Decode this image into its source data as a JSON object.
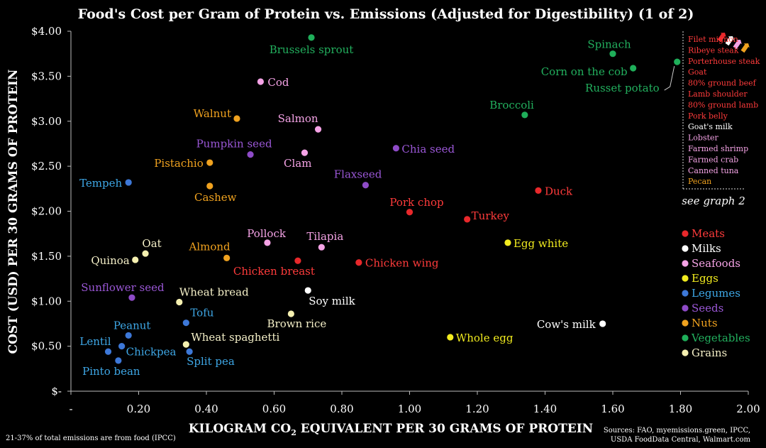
{
  "chart_data": {
    "type": "scatter",
    "title": "Food's Cost per Gram of Protein vs. Emissions (Adjusted for Digestibility) (1 of 2)",
    "xlabel_main": "KILOGRAM CO",
    "xlabel_sub": "2",
    "xlabel_rest": " EQUIVALENT PER 30 GRAMS OF PROTEIN",
    "ylabel": "COST (USD) PER 30 GRAMS OF PROTEIN",
    "xlim": [
      0,
      2.0
    ],
    "ylim": [
      0,
      4.0
    ],
    "x_ticks": [
      {
        "v": 0,
        "label": "-"
      },
      {
        "v": 0.2,
        "label": "0.20"
      },
      {
        "v": 0.4,
        "label": "0.40"
      },
      {
        "v": 0.6,
        "label": "0.60"
      },
      {
        "v": 0.8,
        "label": "0.80"
      },
      {
        "v": 1.0,
        "label": "1.00"
      },
      {
        "v": 1.2,
        "label": "1.20"
      },
      {
        "v": 1.4,
        "label": "1.40"
      },
      {
        "v": 1.6,
        "label": "1.60"
      },
      {
        "v": 1.8,
        "label": "1.80"
      },
      {
        "v": 2.0,
        "label": "2.00"
      }
    ],
    "y_ticks": [
      {
        "v": 0,
        "label": "$-"
      },
      {
        "v": 0.5,
        "label": "$0.50"
      },
      {
        "v": 1.0,
        "label": "$1.00"
      },
      {
        "v": 1.5,
        "label": "$1.50"
      },
      {
        "v": 2.0,
        "label": "$2.00"
      },
      {
        "v": 2.5,
        "label": "$2.50"
      },
      {
        "v": 3.0,
        "label": "$3.00"
      },
      {
        "v": 3.5,
        "label": "$3.50"
      },
      {
        "v": 4.0,
        "label": "$4.00"
      }
    ],
    "categories": [
      {
        "name": "Meats",
        "color": "#e8282b"
      },
      {
        "name": "Milks",
        "color": "#ffffff"
      },
      {
        "name": "Seafoods",
        "color": "#f5a3e6"
      },
      {
        "name": "Eggs",
        "color": "#f2ec1f"
      },
      {
        "name": "Legumes",
        "color": "#3d78d8"
      },
      {
        "name": "Seeds",
        "color": "#8e4bc7"
      },
      {
        "name": "Nuts",
        "color": "#f0a21f"
      },
      {
        "name": "Vegetables",
        "color": "#1faf5a"
      },
      {
        "name": "Grains",
        "color": "#f5f0b0"
      }
    ],
    "label_colors": {
      "Meats": "#ff3b3b",
      "Milks": "#ffffff",
      "Seafoods": "#f5a3e6",
      "Eggs": "#f2ec1f",
      "Legumes": "#3ea7e6",
      "Seeds": "#9a57d6",
      "Nuts": "#f0a21f",
      "Vegetables": "#22b05e",
      "Grains": "#f5f0c8"
    },
    "points": [
      {
        "name": "Brussels sprout",
        "cat": "Vegetables",
        "x": 0.71,
        "y": 3.93,
        "anchor": "middle",
        "dx": 0,
        "dy": 22
      },
      {
        "name": "Spinach",
        "cat": "Vegetables",
        "x": 1.6,
        "y": 3.75,
        "anchor": "middle",
        "dx": -5,
        "dy": -8
      },
      {
        "name": "Corn on the cob",
        "cat": "Vegetables",
        "x": 1.66,
        "y": 3.59,
        "anchor": "end",
        "dx": -8,
        "dy": 10
      },
      {
        "name": "Russet potato",
        "cat": "Vegetables",
        "x": 1.79,
        "y": 3.66,
        "anchor": "end",
        "dx": -25,
        "dy": 42,
        "leader": true
      },
      {
        "name": "Broccoli",
        "cat": "Vegetables",
        "x": 1.34,
        "y": 3.07,
        "anchor": "end",
        "dx": 13,
        "dy": -9
      },
      {
        "name": "Cod",
        "cat": "Seafoods",
        "x": 0.56,
        "y": 3.44,
        "anchor": "start",
        "dx": 10,
        "dy": 6
      },
      {
        "name": "Walnut",
        "cat": "Nuts",
        "x": 0.49,
        "y": 3.03,
        "anchor": "end",
        "dx": -8,
        "dy": -2
      },
      {
        "name": "Salmon",
        "cat": "Seafoods",
        "x": 0.73,
        "y": 2.91,
        "anchor": "end",
        "dx": 0,
        "dy": -10
      },
      {
        "name": "Pumpkin seed",
        "cat": "Seeds",
        "x": 0.53,
        "y": 2.63,
        "anchor": "middle",
        "dx": -23,
        "dy": -10
      },
      {
        "name": "Clam",
        "cat": "Seafoods",
        "x": 0.69,
        "y": 2.65,
        "anchor": "end",
        "dx": 10,
        "dy": 20
      },
      {
        "name": "Chia seed",
        "cat": "Seeds",
        "x": 0.96,
        "y": 2.7,
        "anchor": "start",
        "dx": 8,
        "dy": 6
      },
      {
        "name": "Pistachio",
        "cat": "Nuts",
        "x": 0.41,
        "y": 2.54,
        "anchor": "end",
        "dx": -9,
        "dy": 6
      },
      {
        "name": "Tempeh",
        "cat": "Legumes",
        "x": 0.17,
        "y": 2.32,
        "anchor": "end",
        "dx": -9,
        "dy": 6
      },
      {
        "name": "Flaxseed",
        "cat": "Seeds",
        "x": 0.87,
        "y": 2.29,
        "anchor": "end",
        "dx": 23,
        "dy": -10
      },
      {
        "name": "Cashew",
        "cat": "Nuts",
        "x": 0.41,
        "y": 2.28,
        "anchor": "middle",
        "dx": 8,
        "dy": 21
      },
      {
        "name": "Duck",
        "cat": "Meats",
        "x": 1.38,
        "y": 2.23,
        "anchor": "start",
        "dx": 9,
        "dy": 6
      },
      {
        "name": "Pork chop",
        "cat": "Meats",
        "x": 1.0,
        "y": 1.99,
        "anchor": "middle",
        "dx": 10,
        "dy": -9
      },
      {
        "name": "Turkey",
        "cat": "Meats",
        "x": 1.17,
        "y": 1.91,
        "anchor": "start",
        "dx": 6,
        "dy": 0
      },
      {
        "name": "Pollock",
        "cat": "Seafoods",
        "x": 0.58,
        "y": 1.65,
        "anchor": "end",
        "dx": 26,
        "dy": -8
      },
      {
        "name": "Tilapia",
        "cat": "Seafoods",
        "x": 0.74,
        "y": 1.6,
        "anchor": "middle",
        "dx": 5,
        "dy": -10
      },
      {
        "name": "Egg white",
        "cat": "Eggs",
        "x": 1.29,
        "y": 1.65,
        "anchor": "start",
        "dx": 8,
        "dy": 6
      },
      {
        "name": "Oat",
        "cat": "Grains",
        "x": 0.22,
        "y": 1.53,
        "anchor": "middle",
        "dx": 9,
        "dy": -9
      },
      {
        "name": "Almond",
        "cat": "Nuts",
        "x": 0.46,
        "y": 1.48,
        "anchor": "end",
        "dx": 5,
        "dy": -11
      },
      {
        "name": "Quinoa",
        "cat": "Grains",
        "x": 0.19,
        "y": 1.46,
        "anchor": "end",
        "dx": -8,
        "dy": 6
      },
      {
        "name": "Chicken breast",
        "cat": "Meats",
        "x": 0.67,
        "y": 1.45,
        "anchor": "end",
        "dx": 24,
        "dy": 20
      },
      {
        "name": "Chicken wing",
        "cat": "Meats",
        "x": 0.85,
        "y": 1.43,
        "anchor": "start",
        "dx": 9,
        "dy": 6
      },
      {
        "name": "Sunflower seed",
        "cat": "Seeds",
        "x": 0.18,
        "y": 1.04,
        "anchor": "middle",
        "dx": -13,
        "dy": -9
      },
      {
        "name": "Wheat bread",
        "cat": "Grains",
        "x": 0.32,
        "y": 0.99,
        "anchor": "start",
        "dx": 0,
        "dy": -9
      },
      {
        "name": "Soy milk",
        "cat": "Milks",
        "x": 0.7,
        "y": 1.12,
        "anchor": "start",
        "dx": 1,
        "dy": 20
      },
      {
        "name": "Tofu",
        "cat": "Legumes",
        "x": 0.34,
        "y": 0.76,
        "anchor": "start",
        "dx": 6,
        "dy": -9
      },
      {
        "name": "Brown rice",
        "cat": "Grains",
        "x": 0.65,
        "y": 0.86,
        "anchor": "middle",
        "dx": 8,
        "dy": 19
      },
      {
        "name": "Peanut",
        "cat": "Legumes",
        "x": 0.17,
        "y": 0.62,
        "anchor": "middle",
        "dx": 5,
        "dy": -9
      },
      {
        "name": "Wheat spaghetti",
        "cat": "Grains",
        "x": 0.34,
        "y": 0.52,
        "anchor": "start",
        "dx": 7,
        "dy": -5
      },
      {
        "name": "Whole egg",
        "cat": "Eggs",
        "x": 1.12,
        "y": 0.6,
        "anchor": "start",
        "dx": 8,
        "dy": 6
      },
      {
        "name": "Cow's milk",
        "cat": "Milks",
        "x": 1.57,
        "y": 0.75,
        "anchor": "end",
        "dx": -10,
        "dy": 6
      },
      {
        "name": "Lentil",
        "cat": "Legumes",
        "x": 0.11,
        "y": 0.44,
        "anchor": "end",
        "dx": 4,
        "dy": -9
      },
      {
        "name": "Chickpea",
        "cat": "Legumes",
        "x": 0.15,
        "y": 0.5,
        "anchor": "start",
        "dx": 6,
        "dy": 13
      },
      {
        "name": "Split pea",
        "cat": "Legumes",
        "x": 0.35,
        "y": 0.44,
        "anchor": "start",
        "dx": -4,
        "dy": 19
      },
      {
        "name": "Pinto bean",
        "cat": "Legumes",
        "x": 0.14,
        "y": 0.34,
        "anchor": "middle",
        "dx": -10,
        "dy": 20
      }
    ],
    "overflow_list": [
      {
        "name": "Filet mignon",
        "cat": "Meats"
      },
      {
        "name": "Ribeye steak",
        "cat": "Meats"
      },
      {
        "name": "Porterhouse steak",
        "cat": "Meats"
      },
      {
        "name": "Goat",
        "cat": "Meats"
      },
      {
        "name": "80% ground beef",
        "cat": "Meats"
      },
      {
        "name": "Lamb shoulder",
        "cat": "Meats"
      },
      {
        "name": "80% ground lamb",
        "cat": "Meats"
      },
      {
        "name": "Pork belly",
        "cat": "Meats"
      },
      {
        "name": "Goat's milk",
        "cat": "Milks"
      },
      {
        "name": "Lobster",
        "cat": "Seafoods"
      },
      {
        "name": "Farmed shrimp",
        "cat": "Seafoods"
      },
      {
        "name": "Farmed crab",
        "cat": "Seafoods"
      },
      {
        "name": "Canned tuna",
        "cat": "Seafoods"
      },
      {
        "name": "Pecan",
        "cat": "Nuts"
      }
    ],
    "see_graph": "see graph 2",
    "overflow_arrow_colors": [
      "#e8282b",
      "#ffffff",
      "#f5a3e6",
      "#f0a21f"
    ],
    "footnote": "21-37% of total emissions are from food (IPCC)",
    "sources_line1": "Sources: FAO, myemissions.green, IPCC,",
    "sources_line2": "USDA FoodData Central, Walmart.com",
    "legend_placement": "right",
    "grid": false
  }
}
